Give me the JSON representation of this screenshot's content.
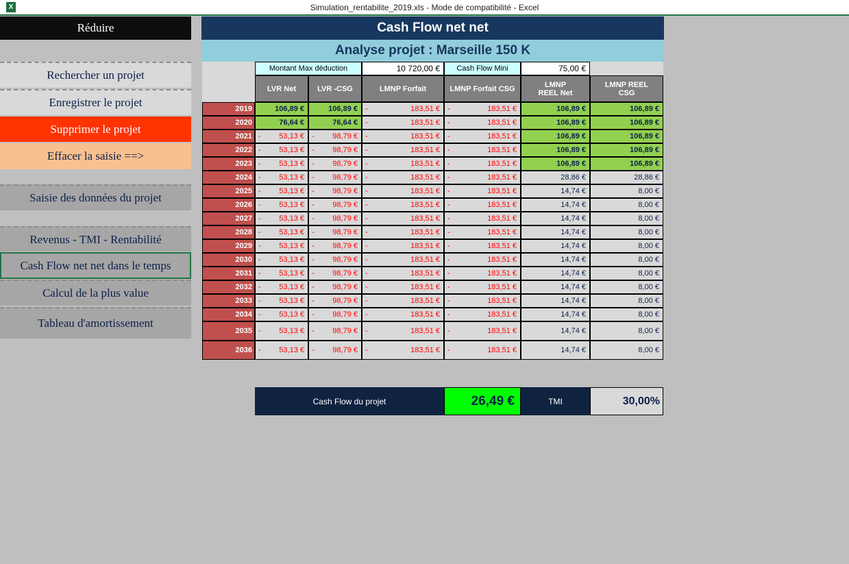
{
  "window": {
    "title": "Simulation_rentabilite_2019.xls  -  Mode de compatibilité - Excel",
    "app_icon": "excel-icon"
  },
  "sidebar": {
    "collapse": "Réduire",
    "items": [
      {
        "label": "Rechercher un projet",
        "color": "#d9d9d9"
      },
      {
        "label": "Enregistrer le projet",
        "color": "#d9d9d9"
      },
      {
        "label": "Supprimer le projet",
        "color": "#ff3300"
      },
      {
        "label": "Effacer la saisie ==>",
        "color": "#f8c08f"
      },
      {
        "label": "Saisie des données du projet",
        "color": "#a6a6a6"
      },
      {
        "label": "Revenus - TMI - Rentabilité",
        "color": "#a6a6a6"
      },
      {
        "label": "Cash Flow net net dans le temps",
        "color": "#a6a6a6",
        "selected": true
      },
      {
        "label": "Calcul de la plus value",
        "color": "#a6a6a6"
      },
      {
        "label": "Tableau d'amortissement",
        "color": "#a6a6a6"
      }
    ]
  },
  "main": {
    "title": "Cash Flow net net",
    "subtitle": "Analyse projet : Marseille 150 K",
    "params": {
      "max_label": "Montant Max déduction",
      "max_value": "10 720,00 €",
      "cf_label": "Cash Flow Mini",
      "cf_value": "75,00 €"
    },
    "columns": [
      "LVR Net",
      "LVR -CSG",
      "LMNP Forfait",
      "LMNP Forfait CSG",
      "LMNP REEL Net",
      "LMNP REEL CSG"
    ],
    "rows": [
      {
        "year": "2019",
        "lvr_net": "106,89 €",
        "lvr_csg": "106,89 €",
        "lvr_neg": false,
        "forfait": "183,51 €",
        "forfait_csg": "183,51 €",
        "reel_net": "106,89 €",
        "reel_csg": "106,89 €",
        "reel_hi": true
      },
      {
        "year": "2020",
        "lvr_net": "76,64 €",
        "lvr_csg": "76,64 €",
        "lvr_neg": false,
        "forfait": "183,51 €",
        "forfait_csg": "183,51 €",
        "reel_net": "106,89 €",
        "reel_csg": "106,89 €",
        "reel_hi": true
      },
      {
        "year": "2021",
        "lvr_net": "53,13 €",
        "lvr_csg": "98,79 €",
        "lvr_neg": true,
        "forfait": "183,51 €",
        "forfait_csg": "183,51 €",
        "reel_net": "106,89 €",
        "reel_csg": "106,89 €",
        "reel_hi": true
      },
      {
        "year": "2022",
        "lvr_net": "53,13 €",
        "lvr_csg": "98,79 €",
        "lvr_neg": true,
        "forfait": "183,51 €",
        "forfait_csg": "183,51 €",
        "reel_net": "106,89 €",
        "reel_csg": "106,89 €",
        "reel_hi": true
      },
      {
        "year": "2023",
        "lvr_net": "53,13 €",
        "lvr_csg": "98,79 €",
        "lvr_neg": true,
        "forfait": "183,51 €",
        "forfait_csg": "183,51 €",
        "reel_net": "106,89 €",
        "reel_csg": "106,89 €",
        "reel_hi": true
      },
      {
        "year": "2024",
        "lvr_net": "53,13 €",
        "lvr_csg": "98,79 €",
        "lvr_neg": true,
        "forfait": "183,51 €",
        "forfait_csg": "183,51 €",
        "reel_net": "28,86 €",
        "reel_csg": "28,86 €",
        "reel_hi": false
      },
      {
        "year": "2025",
        "lvr_net": "53,13 €",
        "lvr_csg": "98,79 €",
        "lvr_neg": true,
        "forfait": "183,51 €",
        "forfait_csg": "183,51 €",
        "reel_net": "14,74 €",
        "reel_csg": "8,00 €",
        "reel_hi": false
      },
      {
        "year": "2026",
        "lvr_net": "53,13 €",
        "lvr_csg": "98,79 €",
        "lvr_neg": true,
        "forfait": "183,51 €",
        "forfait_csg": "183,51 €",
        "reel_net": "14,74 €",
        "reel_csg": "8,00 €",
        "reel_hi": false
      },
      {
        "year": "2027",
        "lvr_net": "53,13 €",
        "lvr_csg": "98,79 €",
        "lvr_neg": true,
        "forfait": "183,51 €",
        "forfait_csg": "183,51 €",
        "reel_net": "14,74 €",
        "reel_csg": "8,00 €",
        "reel_hi": false
      },
      {
        "year": "2028",
        "lvr_net": "53,13 €",
        "lvr_csg": "98,79 €",
        "lvr_neg": true,
        "forfait": "183,51 €",
        "forfait_csg": "183,51 €",
        "reel_net": "14,74 €",
        "reel_csg": "8,00 €",
        "reel_hi": false
      },
      {
        "year": "2029",
        "lvr_net": "53,13 €",
        "lvr_csg": "98,79 €",
        "lvr_neg": true,
        "forfait": "183,51 €",
        "forfait_csg": "183,51 €",
        "reel_net": "14,74 €",
        "reel_csg": "8,00 €",
        "reel_hi": false
      },
      {
        "year": "2030",
        "lvr_net": "53,13 €",
        "lvr_csg": "98,79 €",
        "lvr_neg": true,
        "forfait": "183,51 €",
        "forfait_csg": "183,51 €",
        "reel_net": "14,74 €",
        "reel_csg": "8,00 €",
        "reel_hi": false
      },
      {
        "year": "2031",
        "lvr_net": "53,13 €",
        "lvr_csg": "98,79 €",
        "lvr_neg": true,
        "forfait": "183,51 €",
        "forfait_csg": "183,51 €",
        "reel_net": "14,74 €",
        "reel_csg": "8,00 €",
        "reel_hi": false
      },
      {
        "year": "2032",
        "lvr_net": "53,13 €",
        "lvr_csg": "98,79 €",
        "lvr_neg": true,
        "forfait": "183,51 €",
        "forfait_csg": "183,51 €",
        "reel_net": "14,74 €",
        "reel_csg": "8,00 €",
        "reel_hi": false
      },
      {
        "year": "2033",
        "lvr_net": "53,13 €",
        "lvr_csg": "98,79 €",
        "lvr_neg": true,
        "forfait": "183,51 €",
        "forfait_csg": "183,51 €",
        "reel_net": "14,74 €",
        "reel_csg": "8,00 €",
        "reel_hi": false
      },
      {
        "year": "2034",
        "lvr_net": "53,13 €",
        "lvr_csg": "98,79 €",
        "lvr_neg": true,
        "forfait": "183,51 €",
        "forfait_csg": "183,51 €",
        "reel_net": "14,74 €",
        "reel_csg": "8,00 €",
        "reel_hi": false
      },
      {
        "year": "2035",
        "lvr_net": "53,13 €",
        "lvr_csg": "98,79 €",
        "lvr_neg": true,
        "forfait": "183,51 €",
        "forfait_csg": "183,51 €",
        "reel_net": "14,74 €",
        "reel_csg": "8,00 €",
        "reel_hi": false
      },
      {
        "year": "2036",
        "lvr_net": "53,13 €",
        "lvr_csg": "98,79 €",
        "lvr_neg": true,
        "forfait": "183,51 €",
        "forfait_csg": "183,51 €",
        "reel_net": "14,74 €",
        "reel_csg": "8,00 €",
        "reel_hi": false
      }
    ],
    "summary": {
      "cf_label": "Cash Flow du projet",
      "cf_value": "26,49 €",
      "tmi_label": "TMI",
      "tmi_value": "30,00%"
    },
    "neg_sign": "-"
  }
}
